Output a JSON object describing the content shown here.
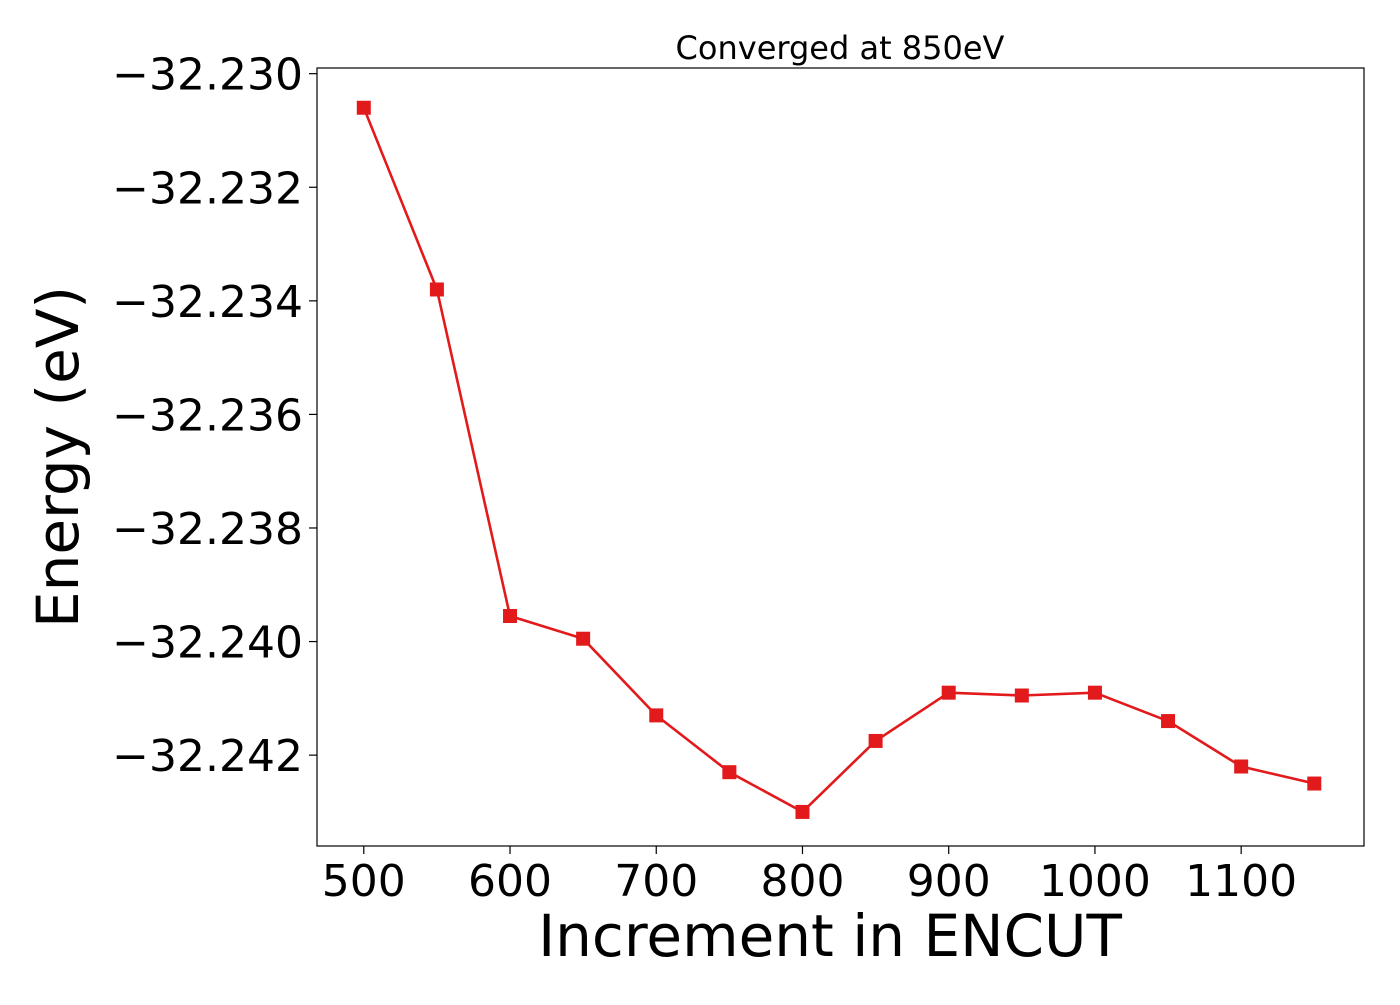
{
  "chart_data": {
    "type": "line",
    "title": "Converged at 850eV",
    "xlabel": "Increment in ENCUT",
    "ylabel": "Energy (eV)",
    "x": [
      500,
      550,
      600,
      650,
      700,
      750,
      800,
      850,
      900,
      950,
      1000,
      1050,
      1100,
      1150
    ],
    "series": [
      {
        "values": [
          -32.2306,
          -32.2338,
          -32.23955,
          -32.23995,
          -32.2413,
          -32.2423,
          -32.243,
          -32.24175,
          -32.2409,
          -32.24095,
          -32.2409,
          -32.2414,
          -32.2422,
          -32.2425
        ]
      }
    ],
    "xlim": [
      468,
      1184
    ],
    "ylim": [
      -32.2436,
      -32.2299
    ],
    "xticks": [
      500,
      600,
      700,
      800,
      900,
      1000,
      1100
    ],
    "xtick_labels": [
      "500",
      "600",
      "700",
      "800",
      "900",
      "1000",
      "1100"
    ],
    "yticks": [
      -32.23,
      -32.232,
      -32.234,
      -32.236,
      -32.238,
      -32.24,
      -32.242
    ],
    "ytick_labels": [
      "−32.230",
      "−32.232",
      "−32.234",
      "−32.236",
      "−32.238",
      "−32.240",
      "−32.242"
    ],
    "marker": "square",
    "line_color": "#e31a1c",
    "grid": false,
    "legend": "none"
  }
}
